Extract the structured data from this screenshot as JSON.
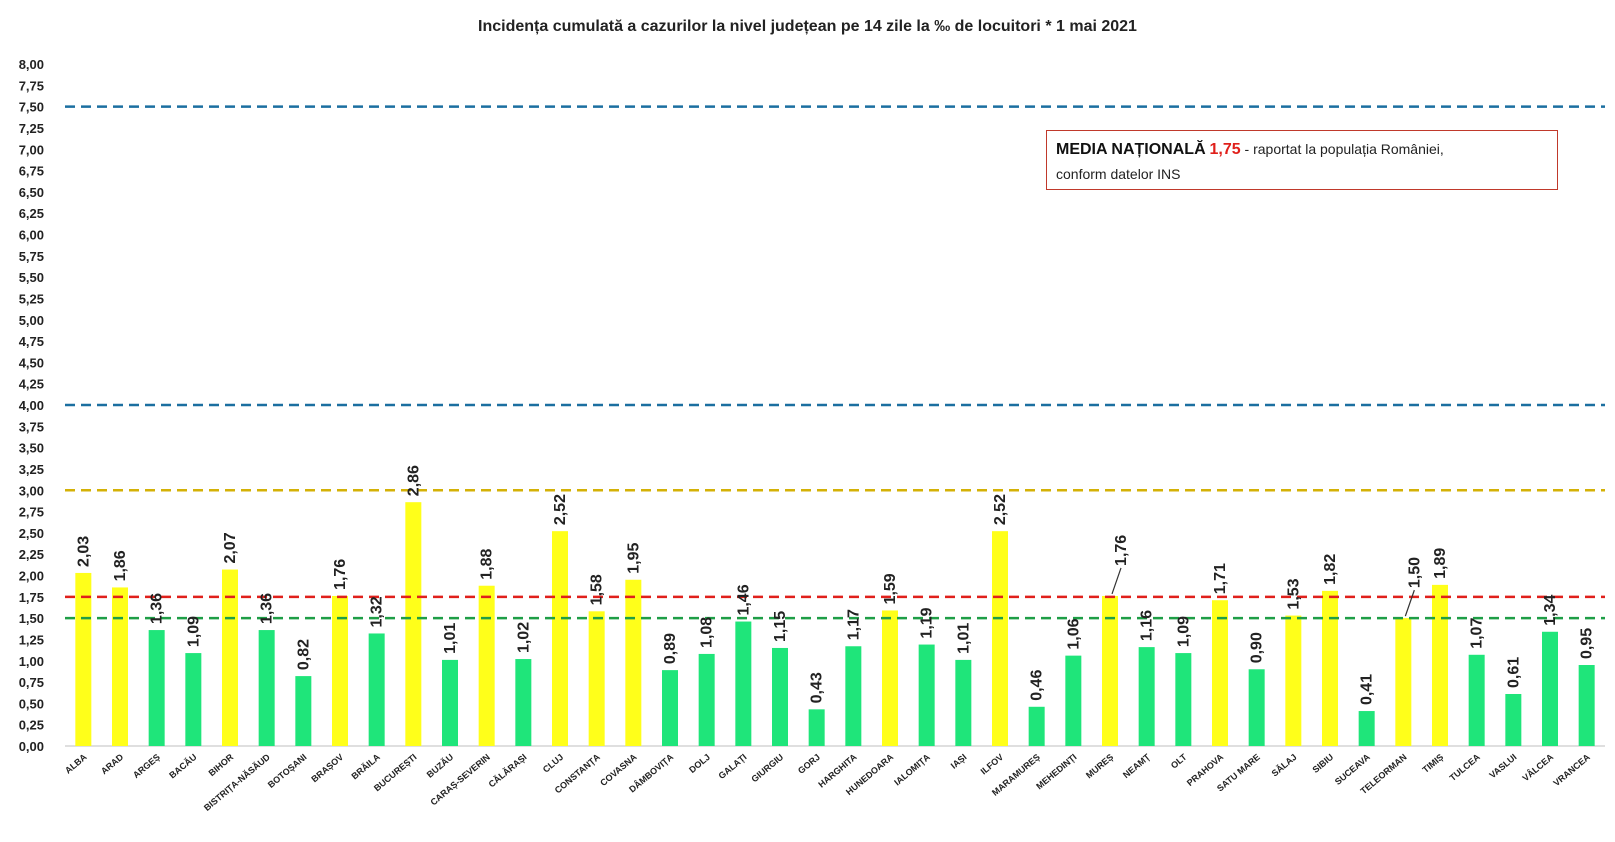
{
  "chart_data": {
    "type": "bar",
    "title": "Incidența cumulată a cazurilor la nivel județean pe 14 zile la ‰ de locuitori *   1 mai 2021",
    "xlabel": "",
    "ylabel": "",
    "ylim": [
      0,
      8
    ],
    "yticks": [
      "0,00",
      "0,25",
      "0,50",
      "0,75",
      "1,00",
      "1,25",
      "1,50",
      "1,75",
      "2,00",
      "2,25",
      "2,50",
      "2,75",
      "3,00",
      "3,25",
      "3,50",
      "3,75",
      "4,00",
      "4,25",
      "4,50",
      "4,75",
      "5,00",
      "5,25",
      "5,50",
      "5,75",
      "6,00",
      "6,25",
      "6,50",
      "6,75",
      "7,00",
      "7,25",
      "7,50",
      "7,75",
      "8,00"
    ],
    "categories": [
      "ALBA",
      "ARAD",
      "ARGEȘ",
      "BACĂU",
      "BIHOR",
      "BISTRIȚA-NĂSĂUD",
      "BOTOȘANI",
      "BRAȘOV",
      "BRĂILA",
      "BUCUREȘTI",
      "BUZĂU",
      "CARAȘ-SEVERIN",
      "CĂLĂRAȘI",
      "CLUJ",
      "CONSTANȚA",
      "COVASNA",
      "DÂMBOVIȚA",
      "DOLJ",
      "GALAȚI",
      "GIURGIU",
      "GORJ",
      "HARGHITA",
      "HUNEDOARA",
      "IALOMIȚA",
      "IAȘI",
      "ILFOV",
      "MARAMUREȘ",
      "MEHEDINȚI",
      "MUREȘ",
      "NEAMȚ",
      "OLT",
      "PRAHOVA",
      "SATU MARE",
      "SĂLAJ",
      "SIBIU",
      "SUCEAVA",
      "TELEORMAN",
      "TIMIȘ",
      "TULCEA",
      "VASLUI",
      "VÂLCEA",
      "VRANCEA"
    ],
    "values": [
      2.03,
      1.86,
      1.36,
      1.09,
      2.07,
      1.36,
      0.82,
      1.76,
      1.32,
      2.86,
      1.01,
      1.88,
      1.02,
      2.52,
      1.58,
      1.95,
      0.89,
      1.08,
      1.46,
      1.15,
      0.43,
      1.17,
      1.59,
      1.19,
      1.01,
      2.52,
      0.46,
      1.06,
      1.76,
      1.16,
      1.09,
      1.71,
      0.9,
      1.53,
      1.82,
      0.41,
      1.5,
      1.89,
      1.07,
      0.61,
      1.34,
      0.95
    ],
    "value_labels": [
      "2,03",
      "1,86",
      "1,36",
      "1,09",
      "2,07",
      "1,36",
      "0,82",
      "1,76",
      "1,32",
      "2,86",
      "1,01",
      "1,88",
      "1,02",
      "2,52",
      "1,58",
      "1,95",
      "0,89",
      "1,08",
      "1,46",
      "1,15",
      "0,43",
      "1,17",
      "1,59",
      "1,19",
      "1,01",
      "2,52",
      "0,46",
      "1,06",
      "1,76",
      "1,16",
      "1,09",
      "1,71",
      "0,90",
      "1,53",
      "1,82",
      "0,41",
      "1,50",
      "1,89",
      "1,07",
      "0,61",
      "1,34",
      "0,95"
    ],
    "bar_colors": {
      "below_1_5": "#1fe57a",
      "from_1_5": "#ffff1a"
    },
    "reference_lines": [
      {
        "value": 7.5,
        "color": "#1b6fa0"
      },
      {
        "value": 4.0,
        "color": "#1b6fa0"
      },
      {
        "value": 3.0,
        "color": "#d4b106"
      },
      {
        "value": 1.75,
        "color": "#e0201b"
      },
      {
        "value": 1.5,
        "color": "#1e9e46"
      }
    ],
    "grid": false,
    "legend": {
      "label": "MEDIA NAȚIONALĂ",
      "value": "1,75",
      "text": " - raportat la populația României,",
      "text2": "conform datelor INS",
      "position": "top-right",
      "border_color": "#c0392b"
    }
  }
}
